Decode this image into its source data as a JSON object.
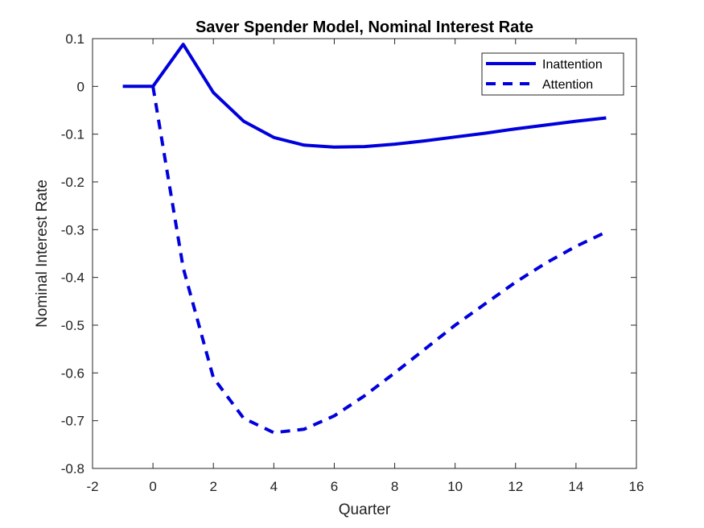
{
  "chart_data": {
    "type": "line",
    "title": "Saver Spender Model, Nominal Interest Rate",
    "xlabel": "Quarter",
    "ylabel": "Nominal Interest Rate",
    "xlim": [
      -2,
      16
    ],
    "ylim": [
      -0.8,
      0.1
    ],
    "xticks": [
      "-2",
      "0",
      "2",
      "4",
      "6",
      "8",
      "10",
      "12",
      "14",
      "16"
    ],
    "yticks": [
      "0.1",
      "0",
      "-0.1",
      "-0.2",
      "-0.3",
      "-0.4",
      "-0.5",
      "-0.6",
      "-0.7",
      "-0.8"
    ],
    "grid": false,
    "legend_position": "top-right",
    "x": [
      -1,
      0,
      1,
      2,
      3,
      4,
      5,
      6,
      7,
      8,
      9,
      10,
      11,
      12,
      13,
      14,
      15
    ],
    "series": [
      {
        "name": "Inattention",
        "style": "solid",
        "color": "#0000dd",
        "values": [
          0,
          0,
          0.088,
          -0.013,
          -0.073,
          -0.107,
          -0.123,
          -0.127,
          -0.126,
          -0.121,
          -0.114,
          -0.106,
          -0.098,
          -0.089,
          -0.081,
          -0.073,
          -0.066
        ]
      },
      {
        "name": "Attention",
        "style": "dashed",
        "color": "#0000dd",
        "values": [
          null,
          0,
          -0.38,
          -0.61,
          -0.695,
          -0.725,
          -0.718,
          -0.69,
          -0.648,
          -0.6,
          -0.55,
          -0.5,
          -0.455,
          -0.41,
          -0.37,
          -0.335,
          -0.305
        ]
      }
    ]
  }
}
